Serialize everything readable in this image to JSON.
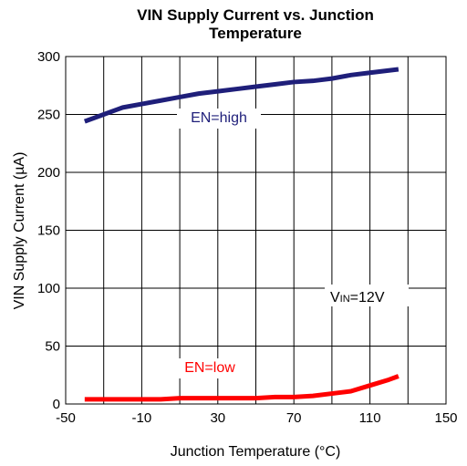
{
  "chart_data": {
    "type": "line",
    "title": [
      "VIN Supply Current vs. Junction",
      "Temperature"
    ],
    "xlabel": "Junction Temperature (°C)",
    "ylabel": "VIN Supply Current (µA)",
    "x": [
      -40,
      -30,
      -20,
      -10,
      0,
      10,
      20,
      30,
      40,
      50,
      60,
      70,
      80,
      90,
      100,
      110,
      120,
      125
    ],
    "series": [
      {
        "name": "EN=high",
        "color": "#1f1f7a",
        "values": [
          244,
          250,
          256,
          259,
          262,
          265,
          268,
          270,
          272,
          274,
          276,
          278,
          279,
          281,
          284,
          286,
          288,
          289
        ]
      },
      {
        "name": "EN=low",
        "color": "#ff0000",
        "values": [
          4,
          4,
          4,
          4,
          4,
          5,
          5,
          5,
          5,
          5,
          6,
          6,
          7,
          9,
          11,
          16,
          21,
          24
        ]
      }
    ],
    "annotation": {
      "main": "V",
      "sub": "IN",
      "rest": "=12V"
    },
    "xlim": [
      -50,
      150
    ],
    "xticks": [
      -50,
      -10,
      30,
      70,
      110,
      150
    ],
    "xminor": [
      -30,
      10,
      50,
      90,
      130
    ],
    "ylim": [
      0,
      300
    ],
    "yticks": [
      0,
      50,
      100,
      150,
      200,
      250,
      300
    ],
    "grid": true
  }
}
